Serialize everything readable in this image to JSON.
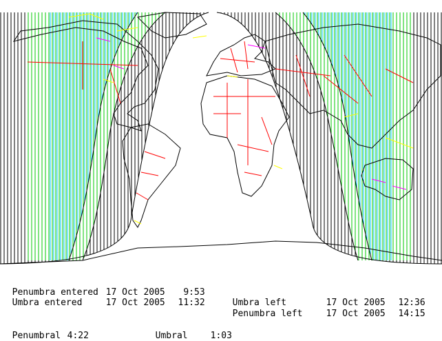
{
  "eclipse": {
    "penumbra_entered": {
      "label": "Penumbra entered",
      "date": "17 Oct 2005",
      "time": "9:53"
    },
    "umbra_entered": {
      "label": "Umbra entered",
      "date": "17 Oct 2005",
      "time": "11:32"
    },
    "umbra_left": {
      "label": "Umbra left",
      "date": "17 Oct 2005",
      "time": "12:36"
    },
    "penumbra_left": {
      "label": "Penumbra left",
      "date": "17 Oct 2005",
      "time": "14:15"
    },
    "penumbral_duration": {
      "label": "Penumbral",
      "value": "4:22"
    },
    "umbral_duration": {
      "label": "Umbral",
      "value": "1:03"
    }
  },
  "colors": {
    "night_hatch": "#000000",
    "penumbra_hatch": "#00c800",
    "umbra_hatch": "#00c8ff",
    "borders": "#ff0000",
    "coastline": "#000000",
    "lakes_islands": "#ffff00",
    "other_features": "#ff00ff"
  }
}
